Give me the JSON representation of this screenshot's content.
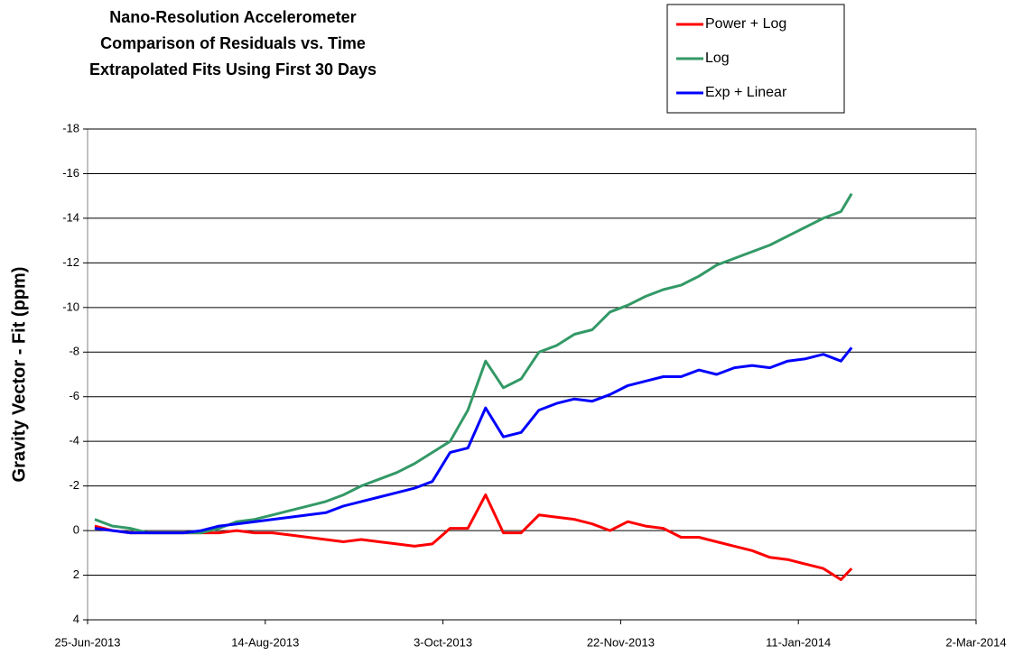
{
  "chart_data": {
    "type": "line",
    "title": [
      "Nano-Resolution Accelerometer",
      "Comparison of Residuals vs. Time",
      "Extrapolated Fits Using First 30 Days"
    ],
    "y_label": "Gravity Vector - Fit (ppm)",
    "x": [
      "2013-06-27",
      "2013-07-02",
      "2013-07-07",
      "2013-07-12",
      "2013-07-17",
      "2013-07-22",
      "2013-07-27",
      "2013-08-01",
      "2013-08-06",
      "2013-08-11",
      "2013-08-16",
      "2013-08-21",
      "2013-08-26",
      "2013-08-31",
      "2013-09-05",
      "2013-09-10",
      "2013-09-15",
      "2013-09-20",
      "2013-09-25",
      "2013-09-30",
      "2013-10-05",
      "2013-10-10",
      "2013-10-15",
      "2013-10-20",
      "2013-10-25",
      "2013-10-30",
      "2013-11-04",
      "2013-11-09",
      "2013-11-14",
      "2013-11-19",
      "2013-11-24",
      "2013-11-29",
      "2013-12-04",
      "2013-12-09",
      "2013-12-14",
      "2013-12-19",
      "2013-12-24",
      "2013-12-29",
      "2014-01-03",
      "2014-01-08",
      "2014-01-13",
      "2014-01-18",
      "2014-01-23",
      "2014-01-26"
    ],
    "series": [
      {
        "name": "Power + Log",
        "color": "#ff0000",
        "values": [
          -0.2,
          0,
          0.1,
          0.1,
          0.1,
          0.1,
          0.1,
          0.1,
          0,
          0.1,
          0.1,
          0.2,
          0.3,
          0.4,
          0.5,
          0.4,
          0.5,
          0.6,
          0.7,
          0.6,
          -0.1,
          -0.1,
          -1.6,
          0.1,
          0.1,
          -0.7,
          -0.6,
          -0.5,
          -0.3,
          0,
          -0.4,
          -0.2,
          -0.1,
          0.3,
          0.3,
          0.5,
          0.7,
          0.9,
          1.2,
          1.3,
          1.5,
          1.7,
          2.2,
          1.7
        ]
      },
      {
        "name": "Log",
        "color": "#339966",
        "values": [
          -0.5,
          -0.2,
          -0.1,
          0.1,
          0.1,
          0.1,
          0.1,
          -0.1,
          -0.4,
          -0.5,
          -0.7,
          -0.9,
          -1.1,
          -1.3,
          -1.6,
          -2.0,
          -2.3,
          -2.6,
          -3.0,
          -3.5,
          -4.0,
          -5.4,
          -7.6,
          -6.4,
          -6.8,
          -8.0,
          -8.3,
          -8.8,
          -9.0,
          -9.8,
          -10.1,
          -10.5,
          -10.8,
          -11.0,
          -11.4,
          -11.9,
          -12.2,
          -12.5,
          -12.8,
          -13.2,
          -13.6,
          -14.0,
          -14.3,
          -15.1
        ]
      },
      {
        "name": "Exp + Linear",
        "color": "#0000ff",
        "values": [
          -0.1,
          0,
          0.1,
          0.1,
          0.1,
          0.1,
          0,
          -0.2,
          -0.3,
          -0.4,
          -0.5,
          -0.6,
          -0.7,
          -0.8,
          -1.1,
          -1.3,
          -1.5,
          -1.7,
          -1.9,
          -2.2,
          -3.5,
          -3.7,
          -5.5,
          -4.2,
          -4.4,
          -5.4,
          -5.7,
          -5.9,
          -5.8,
          -6.1,
          -6.5,
          -6.7,
          -6.9,
          -6.9,
          -7.2,
          -7.0,
          -7.3,
          -7.4,
          -7.3,
          -7.6,
          -7.7,
          -7.9,
          -7.6,
          -8.2
        ]
      }
    ],
    "xlim": [
      "2013-06-25",
      "2014-03-02"
    ],
    "xticks": [
      {
        "value": "2013-06-25",
        "label": "25-Jun-2013"
      },
      {
        "value": "2013-08-14",
        "label": "14-Aug-2013"
      },
      {
        "value": "2013-10-03",
        "label": "3-Oct-2013"
      },
      {
        "value": "2013-11-22",
        "label": "22-Nov-2013"
      },
      {
        "value": "2014-01-11",
        "label": "11-Jan-2014"
      },
      {
        "value": "2014-03-02",
        "label": "2-Mar-2014"
      }
    ],
    "ylim": [
      4,
      -18
    ],
    "yticks": [
      4,
      2,
      0,
      -2,
      -4,
      -6,
      -8,
      -10,
      -12,
      -14,
      -16,
      -18
    ],
    "grid": true,
    "legend": "top-right"
  }
}
